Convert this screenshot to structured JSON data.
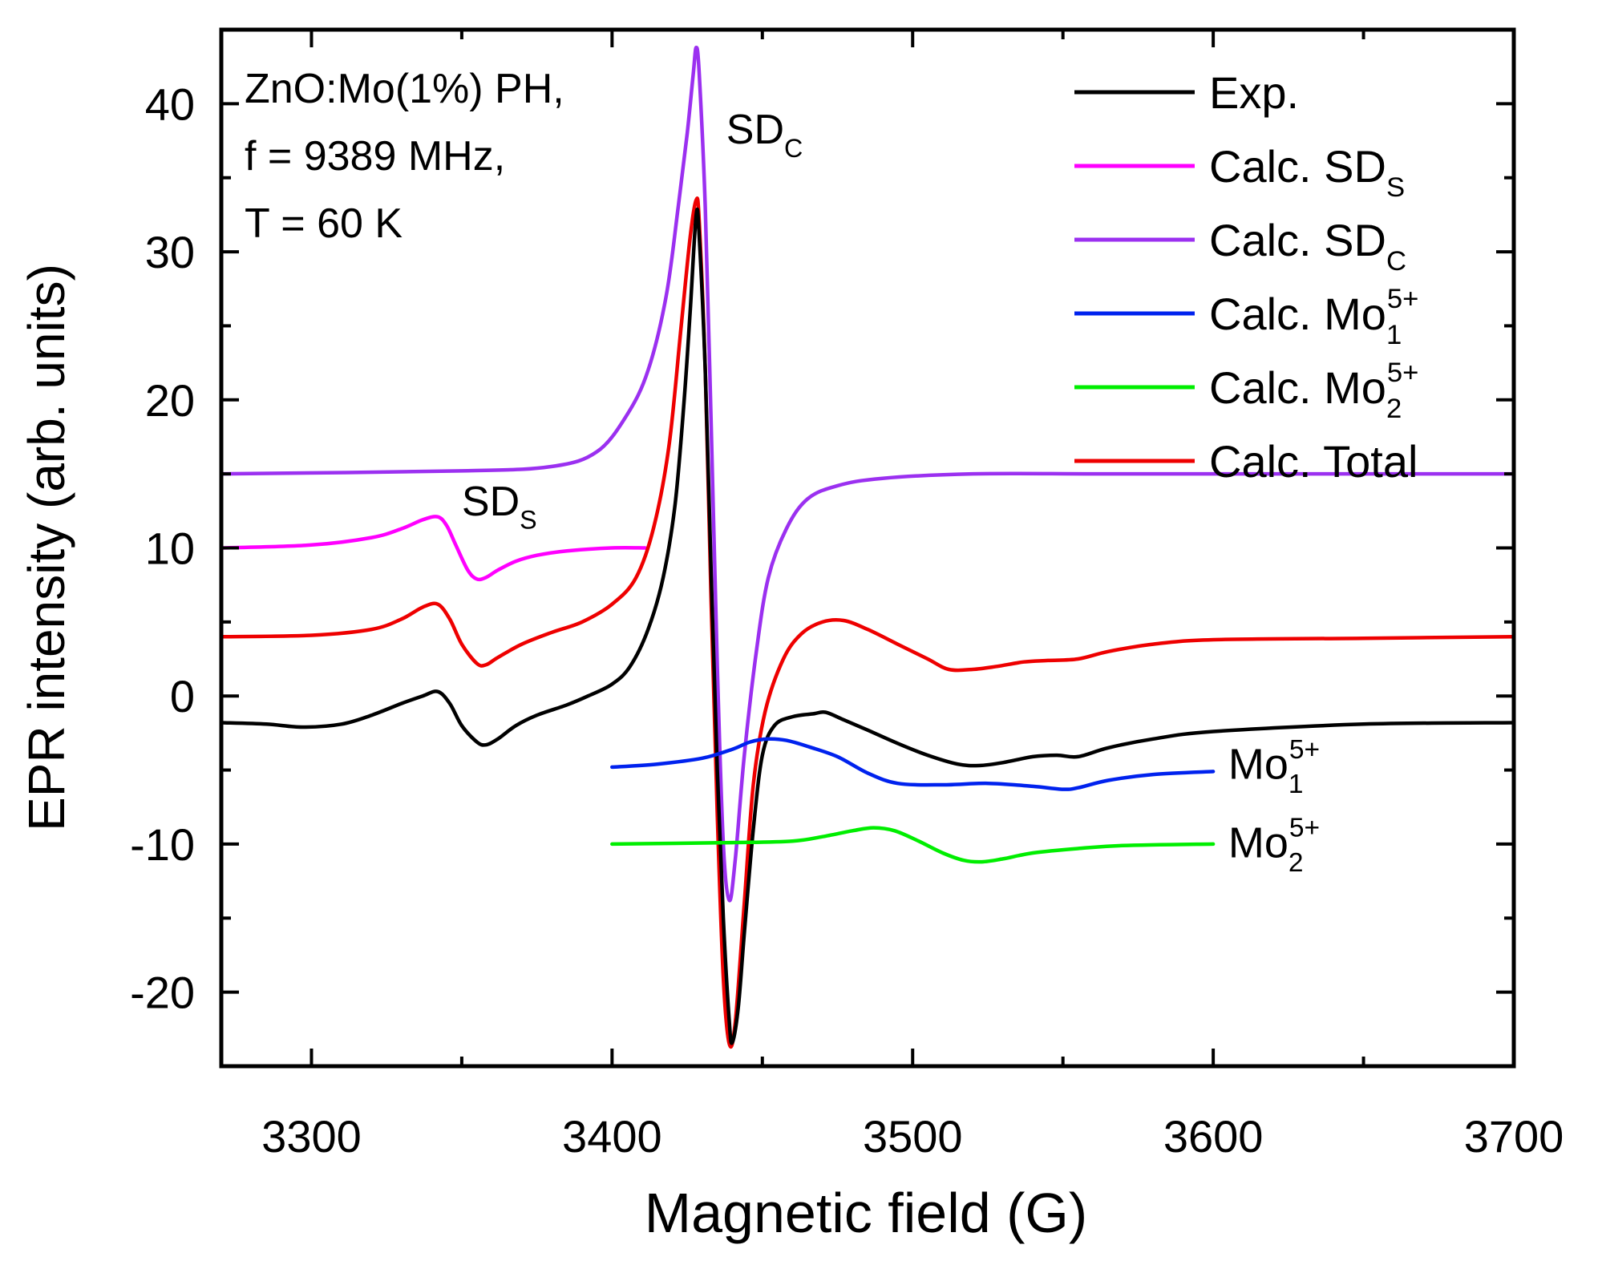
{
  "chart_data": {
    "type": "line",
    "xlabel": "Magnetic field (G)",
    "ylabel": "EPR intensity (arb. units)",
    "xlim": [
      3270,
      3700
    ],
    "ylim": [
      -25,
      45
    ],
    "xticks": [
      3300,
      3400,
      3500,
      3600,
      3700
    ],
    "yticks": [
      -20,
      -10,
      0,
      10,
      20,
      30,
      40
    ],
    "xtick_labels": [
      "3300",
      "3400",
      "3500",
      "3600",
      "3700"
    ],
    "ytick_labels": [
      "-20",
      "-10",
      "0",
      "10",
      "20",
      "30",
      "40"
    ],
    "sample_info": [
      "ZnO:Mo(1%) PH,",
      "f = 9389 MHz,",
      "T = 60 K"
    ],
    "colors": {
      "exp": "#000000",
      "sds": "#ff00ff",
      "sdc": "#9b30f0",
      "mo1": "#0022ee",
      "mo2": "#00ee00",
      "total": "#ee0000"
    },
    "legend": [
      {
        "key": "exp",
        "label": "Exp.",
        "sub": "",
        "sup": ""
      },
      {
        "key": "sds",
        "label": "Calc. SD",
        "sub": "S",
        "sup": ""
      },
      {
        "key": "sdc",
        "label": "Calc. SD",
        "sub": "C",
        "sup": ""
      },
      {
        "key": "mo1",
        "label": "Calc. Mo",
        "sub": "1",
        "sup": "5+"
      },
      {
        "key": "mo2",
        "label": "Calc. Mo",
        "sub": "2",
        "sup": "5+"
      },
      {
        "key": "total",
        "label": "Calc. Total",
        "sub": "",
        "sup": ""
      }
    ],
    "annotations": [
      {
        "key": "sdc",
        "base": "SD",
        "sub": "C",
        "sup": "",
        "x": 3438,
        "y": 37.3
      },
      {
        "key": "sds",
        "base": "SD",
        "sub": "S",
        "sup": "",
        "x": 3350,
        "y": 12.2
      },
      {
        "key": "mo1",
        "base": "Mo",
        "sub": "1",
        "sup": "5+",
        "x": 3605,
        "y": -5.6
      },
      {
        "key": "mo2",
        "base": "Mo",
        "sub": "2",
        "sup": "5+",
        "x": 3605,
        "y": -10.9
      }
    ],
    "series": [
      {
        "key": "sdc",
        "name": "Calc. SDC",
        "x": [
          3270,
          3350,
          3380,
          3395,
          3405,
          3412,
          3418,
          3422,
          3425,
          3427,
          3428,
          3429,
          3431,
          3433,
          3435,
          3437,
          3439,
          3441,
          3444,
          3448,
          3452,
          3458,
          3465,
          3475,
          3490,
          3520,
          3560,
          3600,
          3700
        ],
        "y": [
          15,
          15.2,
          15.5,
          16.5,
          19,
          22,
          27,
          33,
          38,
          42,
          43.8,
          42,
          33,
          18,
          2,
          -10,
          -13.8,
          -11,
          -4,
          3,
          8,
          11.3,
          13.3,
          14.2,
          14.7,
          15,
          15,
          15,
          15
        ]
      },
      {
        "key": "sds",
        "name": "Calc. SDS",
        "x": [
          3270,
          3300,
          3320,
          3330,
          3337,
          3342,
          3345,
          3348,
          3352,
          3355,
          3358,
          3362,
          3368,
          3375,
          3385,
          3400,
          3411
        ],
        "y": [
          10,
          10.2,
          10.7,
          11.3,
          11.9,
          12.1,
          11.5,
          10.2,
          8.5,
          7.9,
          8,
          8.5,
          9.1,
          9.5,
          9.8,
          10,
          10
        ]
      },
      {
        "key": "total",
        "name": "Calc. Total",
        "x": [
          3270,
          3300,
          3320,
          3330,
          3337,
          3342,
          3346,
          3350,
          3355,
          3358,
          3362,
          3370,
          3380,
          3390,
          3400,
          3408,
          3414,
          3419,
          3423,
          3426,
          3428,
          3429,
          3431,
          3433,
          3435,
          3437,
          3439,
          3441,
          3444,
          3447,
          3451,
          3457,
          3463,
          3470,
          3477,
          3485,
          3495,
          3505,
          3512,
          3520,
          3528,
          3537,
          3545,
          3555,
          3565,
          3580,
          3600,
          3650,
          3700
        ],
        "y": [
          4,
          4.1,
          4.5,
          5.2,
          6,
          6.2,
          5.2,
          3.5,
          2.2,
          2.1,
          2.6,
          3.5,
          4.3,
          5,
          6.2,
          8,
          11.5,
          17,
          25,
          31,
          33.5,
          32,
          22,
          6,
          -8,
          -19,
          -23.5,
          -22,
          -14,
          -6,
          -1,
          2.5,
          4.2,
          5,
          5.1,
          4.5,
          3.5,
          2.5,
          1.8,
          1.8,
          2,
          2.3,
          2.4,
          2.5,
          3,
          3.5,
          3.8,
          3.9,
          4
        ]
      },
      {
        "key": "exp",
        "name": "Exp.",
        "x": [
          3270,
          3285,
          3297,
          3310,
          3320,
          3330,
          3337,
          3342,
          3346,
          3350,
          3355,
          3358,
          3362,
          3368,
          3375,
          3385,
          3392,
          3400,
          3406,
          3412,
          3417,
          3421,
          3424,
          3426,
          3428,
          3429,
          3431,
          3433,
          3435,
          3437,
          3439,
          3440,
          3442,
          3444,
          3447,
          3450,
          3454,
          3460,
          3467,
          3471,
          3477,
          3485,
          3495,
          3505,
          3515,
          3522,
          3530,
          3540,
          3548,
          3555,
          3565,
          3580,
          3600,
          3650,
          3700
        ],
        "y": [
          -1.8,
          -1.9,
          -2.1,
          -1.9,
          -1.3,
          -0.5,
          0,
          0.3,
          -0.5,
          -2,
          -3.1,
          -3.3,
          -2.9,
          -2,
          -1.3,
          -0.6,
          0,
          0.8,
          2,
          4.5,
          8,
          13,
          20,
          26,
          32.5,
          31,
          22,
          8,
          -5,
          -15,
          -22,
          -23.4,
          -21,
          -16,
          -9,
          -4,
          -2,
          -1.4,
          -1.2,
          -1.1,
          -1.6,
          -2.3,
          -3.2,
          -4,
          -4.6,
          -4.7,
          -4.5,
          -4.1,
          -4,
          -4.1,
          -3.5,
          -2.9,
          -2.4,
          -1.9,
          -1.8
        ]
      },
      {
        "key": "mo1",
        "name": "Calc. Mo1 5+",
        "x": [
          3400,
          3415,
          3430,
          3440,
          3446,
          3452,
          3458,
          3465,
          3475,
          3485,
          3495,
          3510,
          3525,
          3540,
          3550,
          3555,
          3565,
          3580,
          3600
        ],
        "y": [
          -4.8,
          -4.6,
          -4.2,
          -3.6,
          -3.1,
          -2.9,
          -3,
          -3.4,
          -4.1,
          -5.2,
          -5.9,
          -6,
          -5.9,
          -6.1,
          -6.3,
          -6.2,
          -5.7,
          -5.3,
          -5.1
        ]
      },
      {
        "key": "mo2",
        "name": "Calc. Mo2 5+",
        "x": [
          3400,
          3440,
          3460,
          3470,
          3480,
          3487,
          3494,
          3502,
          3510,
          3517,
          3523,
          3530,
          3540,
          3555,
          3570,
          3600
        ],
        "y": [
          -10,
          -9.9,
          -9.8,
          -9.5,
          -9.1,
          -8.9,
          -9.1,
          -9.8,
          -10.6,
          -11.1,
          -11.2,
          -11,
          -10.6,
          -10.3,
          -10.1,
          -10
        ]
      }
    ]
  }
}
